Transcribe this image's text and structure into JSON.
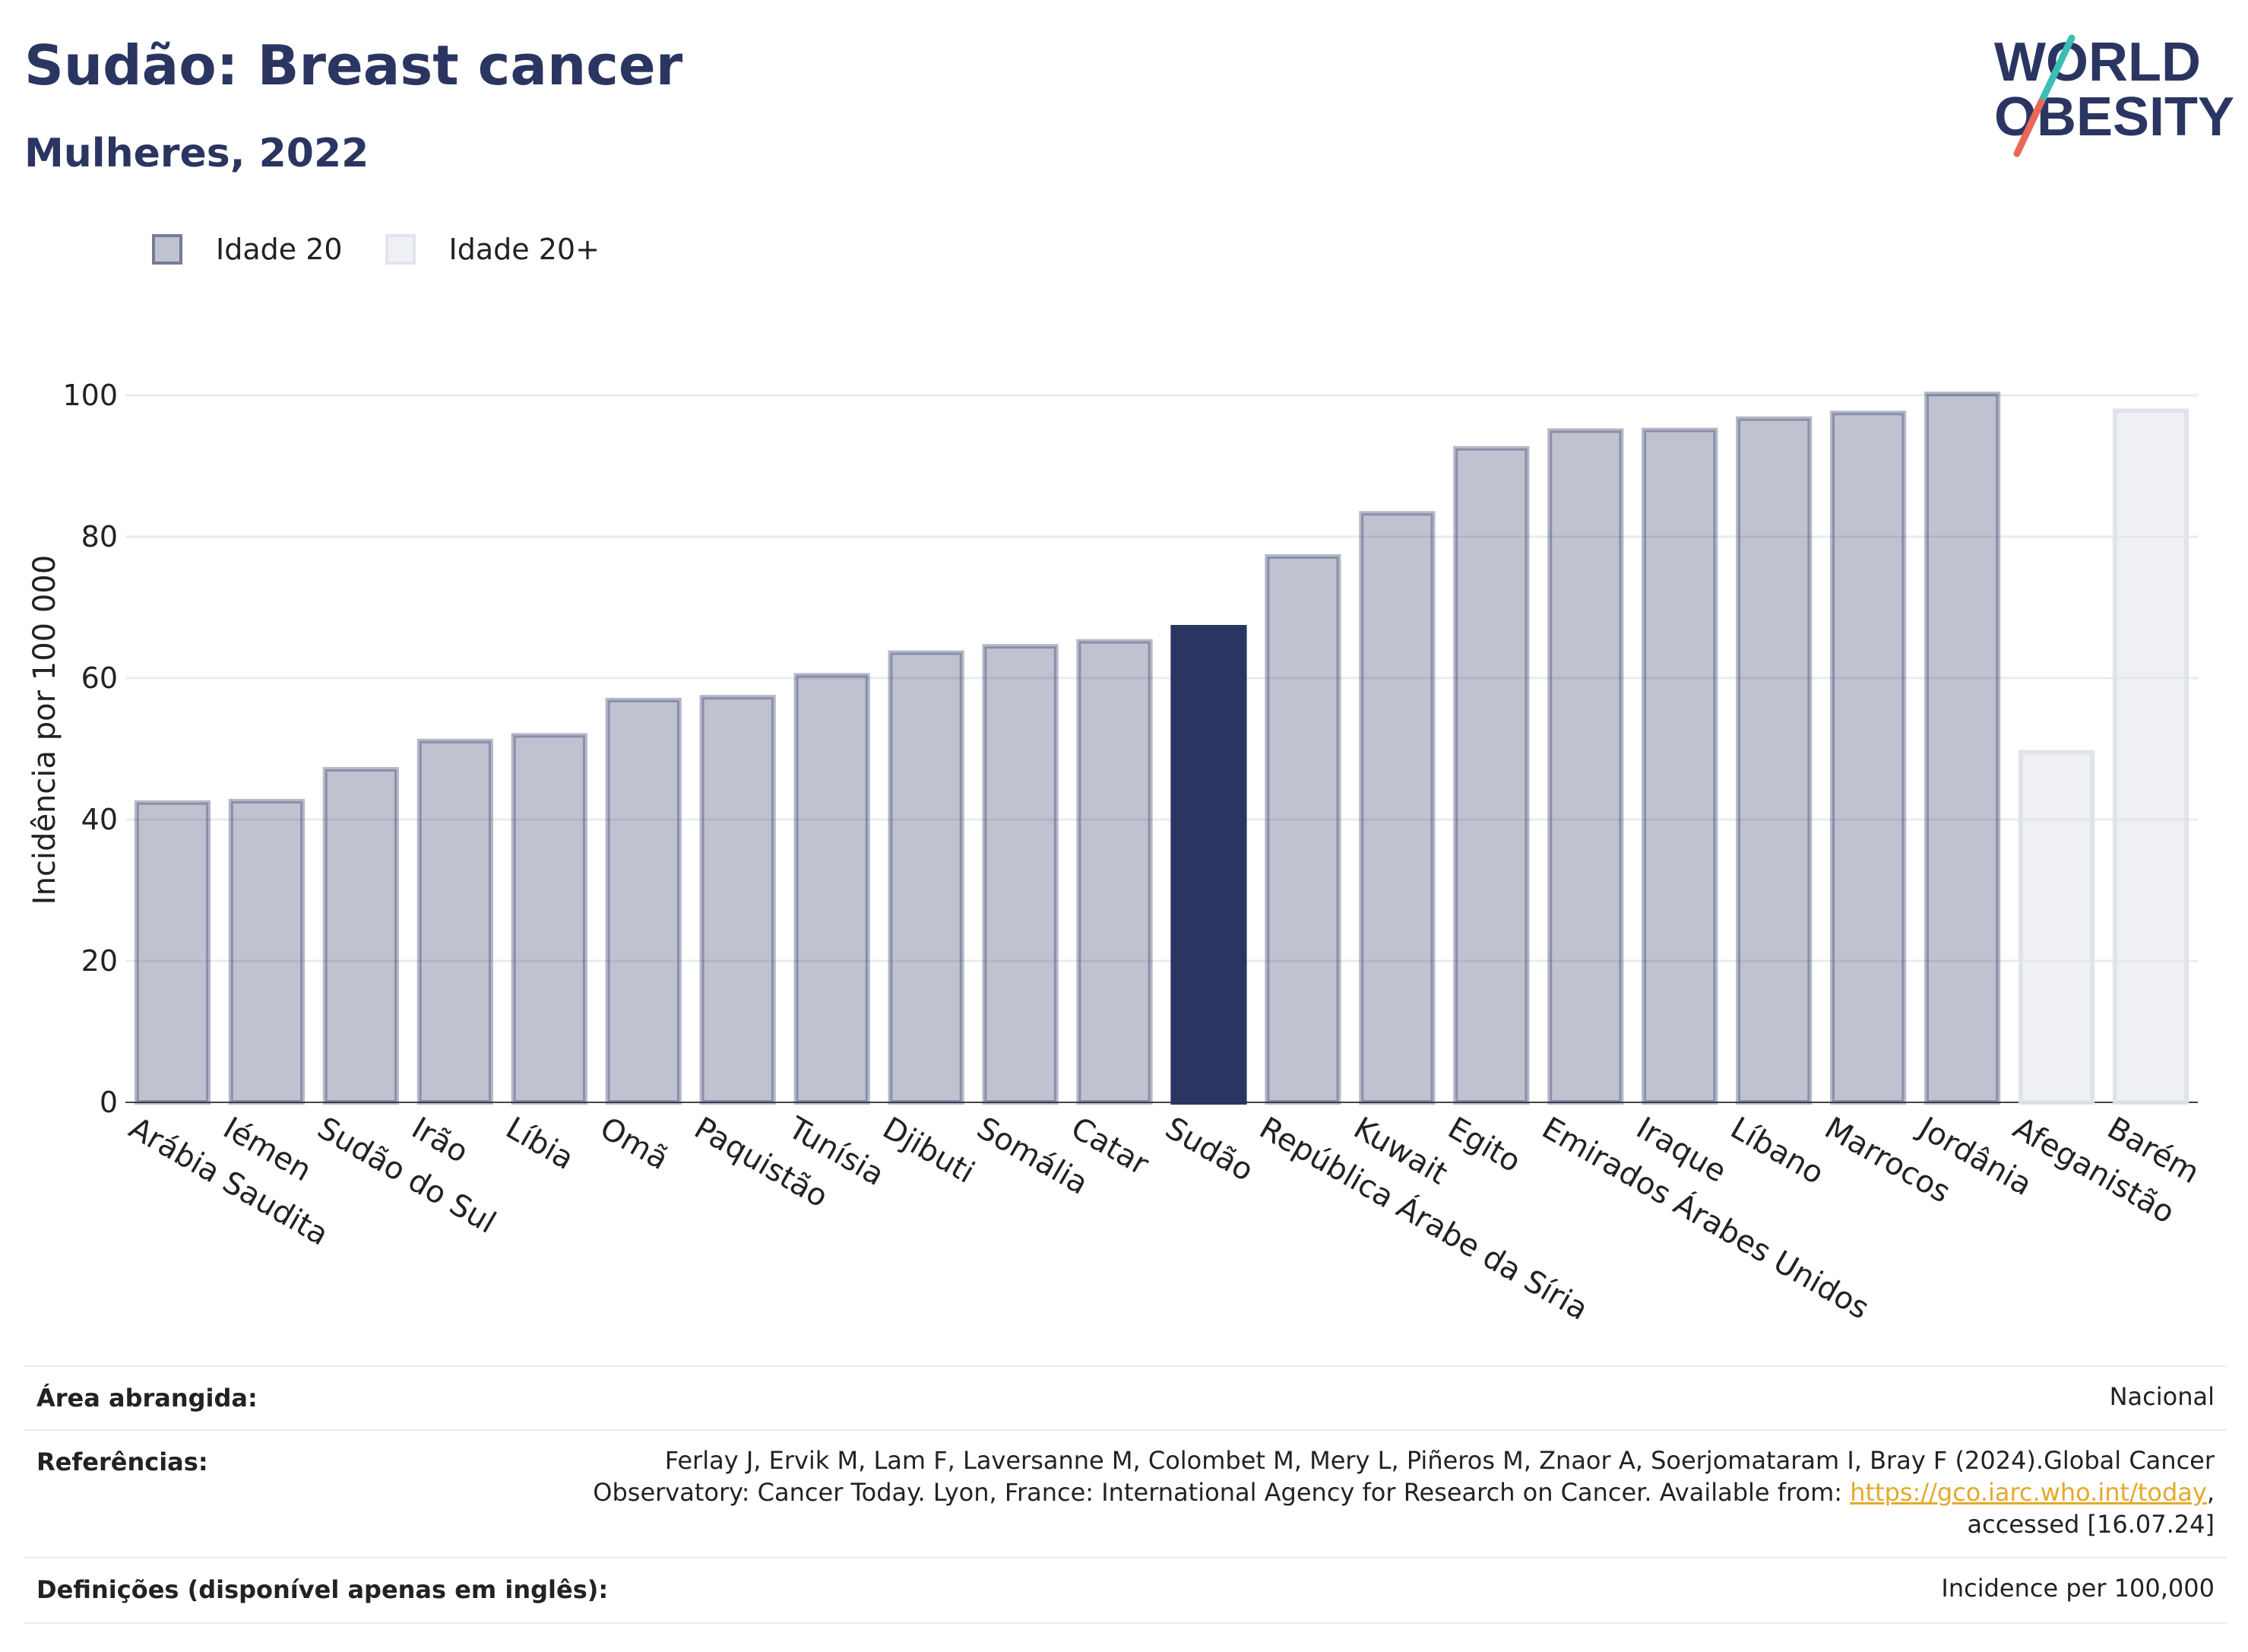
{
  "header": {
    "title": "Sudão: Breast cancer",
    "subtitle": "Mulheres, 2022"
  },
  "logo": {
    "line1": "WORLD",
    "line2": "OBESITY",
    "colors": {
      "text": "#2b3561",
      "slash_teal": "#3bbfb5",
      "slash_coral": "#e8685a"
    }
  },
  "legend": {
    "items": [
      {
        "label": "Idade 20",
        "color": "#2b3561",
        "fill_opacity": 0.3
      },
      {
        "label": "Idade 20+",
        "color": "#dfe2ea",
        "fill_opacity": 0.5
      }
    ]
  },
  "chart_data": {
    "type": "bar",
    "title": "",
    "xlabel": "",
    "ylabel": "Incidência por 100 000",
    "ylim": [
      0,
      105
    ],
    "yticks": [
      0,
      20,
      40,
      60,
      80,
      100
    ],
    "grid": true,
    "legend_position": "top-left",
    "highlight": "Sudão",
    "colors": {
      "normal": "#2b3561",
      "highlight": "#2b3561",
      "age20plus": "#dfe2ea",
      "grid": "#e8ecef"
    },
    "categories": [
      "Arábia Saudita",
      "Iémen",
      "Sudão do Sul",
      "Irão",
      "Líbia",
      "Omã",
      "Paquistão",
      "Tunísia",
      "Djibuti",
      "Somália",
      "Catar",
      "Sudão",
      "República Árabe da Síria",
      "Kuwait",
      "Egito",
      "Emirados Árabes Unidos",
      "Iraque",
      "Líbano",
      "Marrocos",
      "Jordânia",
      "Afeganistão",
      "Barém"
    ],
    "series": [
      {
        "name": "Idade 20",
        "values": [
          42.4,
          42.6,
          47.1,
          51.1,
          51.9,
          56.9,
          57.3,
          60.4,
          63.6,
          64.5,
          65.2,
          67.2,
          77.2,
          83.3,
          92.5,
          95.0,
          95.1,
          96.7,
          97.5,
          100.2,
          null,
          null
        ]
      },
      {
        "name": "Idade 20+",
        "values": [
          null,
          null,
          null,
          null,
          null,
          null,
          null,
          null,
          null,
          null,
          null,
          null,
          null,
          null,
          null,
          null,
          null,
          null,
          null,
          null,
          49.5,
          97.8
        ]
      }
    ]
  },
  "info": {
    "area_label": "Área abrangida:",
    "area_value": "Nacional",
    "refs_label": "Referências:",
    "refs_line1": "Ferlay J, Ervik M, Lam F, Laversanne M, Colombet M, Mery L, Piñeros M, Znaor A, Soerjomataram I, Bray F (2024).Global Cancer",
    "refs_line2_pre": "Observatory: Cancer Today. Lyon, France: International Agency for Research on Cancer. Available from: ",
    "refs_link": "https://gco.iarc.who.int/today",
    "refs_line2_post": ",",
    "refs_line3": "accessed [16.07.24]",
    "defs_label": "Definições (disponível apenas em inglês):",
    "defs_value": "Incidence per 100,000"
  }
}
